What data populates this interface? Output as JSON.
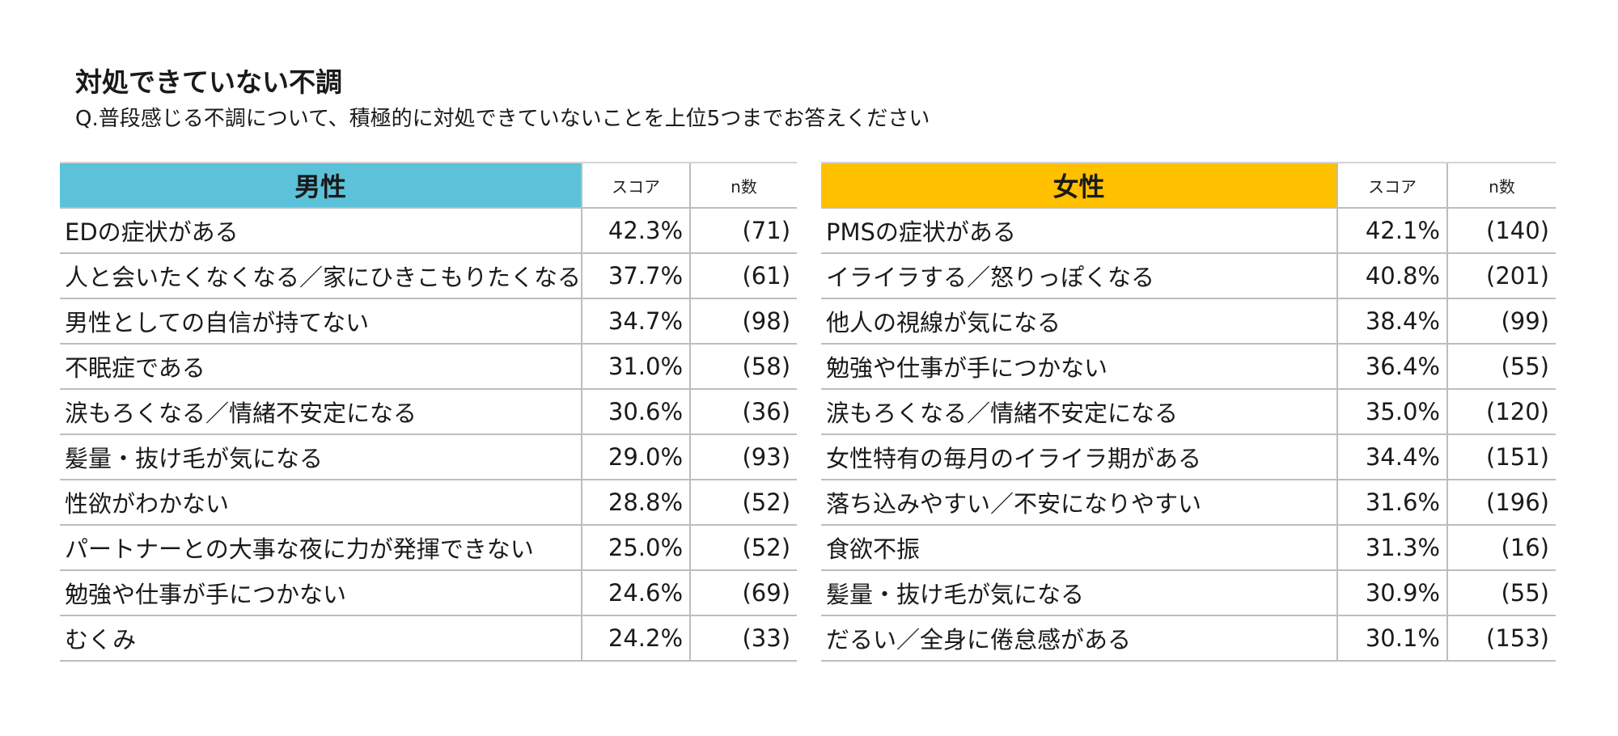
{
  "title": "対処できていない不調",
  "subtitle": "Q.普段感じる不調について、積極的に対処できていないことを上位5つまでお答えください",
  "colors": {
    "men_header": "#5bc2d9",
    "women_header": "#ffc000",
    "grid": "#bdbdbd"
  },
  "men": {
    "header": "男性",
    "score_label": "スコア",
    "n_label": "n数",
    "rows": [
      {
        "label": "EDの症状がある",
        "score": "42.3%",
        "n": "(71)"
      },
      {
        "label": "人と会いたくなくなる／家にひきこもりたくなる",
        "score": "37.7%",
        "n": "(61)"
      },
      {
        "label": "男性としての自信が持てない",
        "score": "34.7%",
        "n": "(98)"
      },
      {
        "label": "不眠症である",
        "score": "31.0%",
        "n": "(58)"
      },
      {
        "label": "涙もろくなる／情緒不安定になる",
        "score": "30.6%",
        "n": "(36)"
      },
      {
        "label": "髪量・抜け毛が気になる",
        "score": "29.0%",
        "n": "(93)"
      },
      {
        "label": "性欲がわかない",
        "score": "28.8%",
        "n": "(52)"
      },
      {
        "label": "パートナーとの大事な夜に力が発揮できない",
        "score": "25.0%",
        "n": "(52)"
      },
      {
        "label": "勉強や仕事が手につかない",
        "score": "24.6%",
        "n": "(69)"
      },
      {
        "label": "むくみ",
        "score": "24.2%",
        "n": "(33)"
      }
    ]
  },
  "women": {
    "header": "女性",
    "score_label": "スコア",
    "n_label": "n数",
    "rows": [
      {
        "label": "PMSの症状がある",
        "score": "42.1%",
        "n": "(140)"
      },
      {
        "label": "イライラする／怒りっぽくなる",
        "score": "40.8%",
        "n": "(201)"
      },
      {
        "label": "他人の視線が気になる",
        "score": "38.4%",
        "n": "(99)"
      },
      {
        "label": "勉強や仕事が手につかない",
        "score": "36.4%",
        "n": "(55)"
      },
      {
        "label": "涙もろくなる／情緒不安定になる",
        "score": "35.0%",
        "n": "(120)"
      },
      {
        "label": "女性特有の毎月のイライラ期がある",
        "score": "34.4%",
        "n": "(151)"
      },
      {
        "label": "落ち込みやすい／不安になりやすい",
        "score": "31.6%",
        "n": "(196)"
      },
      {
        "label": "食欲不振",
        "score": "31.3%",
        "n": "(16)"
      },
      {
        "label": "髪量・抜け毛が気になる",
        "score": "30.9%",
        "n": "(55)"
      },
      {
        "label": "だるい／全身に倦怠感がある",
        "score": "30.1%",
        "n": "(153)"
      }
    ]
  }
}
